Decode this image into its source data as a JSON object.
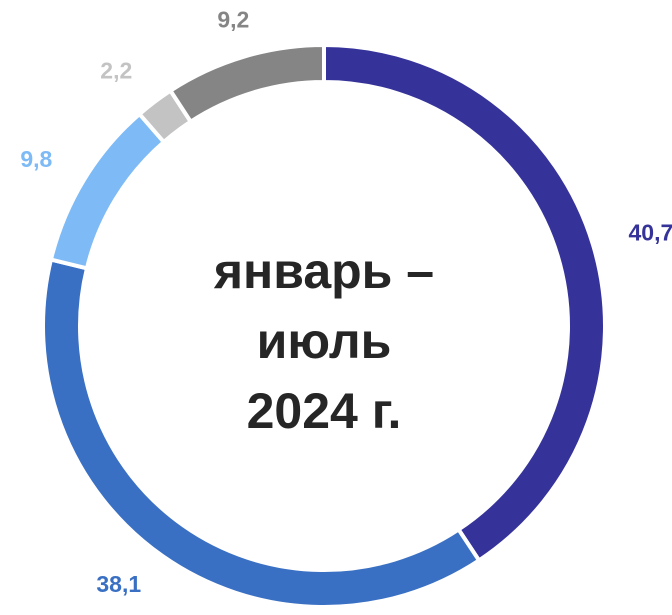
{
  "chart_data": {
    "type": "donut",
    "center_text": [
      "январь –",
      "июль",
      "2024 г."
    ],
    "categories": [
      null,
      null,
      null,
      null,
      null
    ],
    "values": [
      40.7,
      38.1,
      9.8,
      2.2,
      9.2
    ],
    "value_labels": [
      "40,7",
      "38,1",
      "9,8",
      "2,2",
      "9,2"
    ],
    "colors": [
      "#35339a",
      "#3a70c3",
      "#7dbaf6",
      "#c3c3c3",
      "#858585"
    ]
  }
}
